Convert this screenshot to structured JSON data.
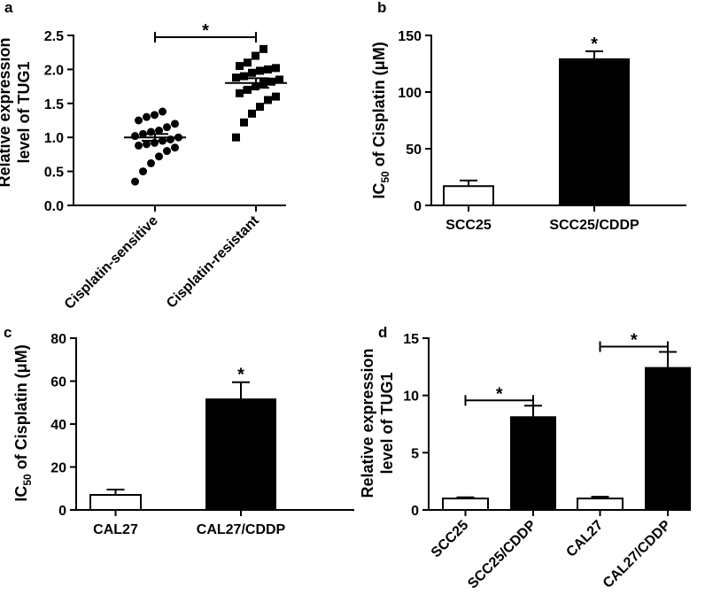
{
  "chart_data": [
    {
      "panel": "a",
      "type": "scatter",
      "ylabel": [
        "Relative expression",
        "level of TUG1"
      ],
      "ylim": [
        0,
        2.5
      ],
      "yticks": [
        "0.0",
        "0.5",
        "1.0",
        "1.5",
        "2.0",
        "2.5"
      ],
      "categories": [
        "Cisplatin-sensitive",
        "Cisplatin-resistant"
      ],
      "points": [
        [
          0.35,
          0.5,
          0.62,
          0.72,
          0.8,
          0.85,
          0.88,
          0.9,
          0.92,
          0.95,
          0.97,
          1.0,
          1.02,
          1.05,
          1.08,
          1.1,
          1.15,
          1.2,
          1.25,
          1.3,
          1.33,
          1.38
        ],
        [
          1.0,
          1.22,
          1.35,
          1.45,
          1.55,
          1.6,
          1.65,
          1.7,
          1.75,
          1.8,
          1.82,
          1.85,
          1.88,
          1.9,
          1.95,
          1.98,
          2.0,
          2.02,
          2.05,
          2.1,
          2.2,
          2.3
        ]
      ],
      "means": [
        1.0,
        1.8
      ],
      "sem": [
        0.05,
        0.07
      ],
      "significance": [
        {
          "pair": [
            0,
            1
          ],
          "label": "*"
        }
      ]
    },
    {
      "panel": "b",
      "type": "bar",
      "ylabel": "IC50 of Cisplatin (μM)",
      "ylim": [
        0,
        150
      ],
      "yticks": [
        "0",
        "50",
        "100",
        "150"
      ],
      "categories": [
        "SCC25",
        "SCC25/CDDP"
      ],
      "values": [
        17,
        129
      ],
      "errors": [
        5,
        7
      ],
      "fills": [
        "#ffffff",
        "#000000"
      ],
      "significance": [
        {
          "bar": 1,
          "label": "*"
        }
      ]
    },
    {
      "panel": "c",
      "type": "bar",
      "ylabel": "IC50 of Cisplatin (μM)",
      "ylim": [
        0,
        80
      ],
      "yticks": [
        "0",
        "20",
        "40",
        "60",
        "80"
      ],
      "categories": [
        "CAL27",
        "CAL27/CDDP"
      ],
      "values": [
        7,
        51.5
      ],
      "errors": [
        2.5,
        8
      ],
      "fills": [
        "#ffffff",
        "#000000"
      ],
      "significance": [
        {
          "bar": 1,
          "label": "*"
        }
      ]
    },
    {
      "panel": "d",
      "type": "bar",
      "ylabel": [
        "Relative expression",
        "level of TUG1"
      ],
      "ylim": [
        0,
        15
      ],
      "yticks": [
        "0",
        "5",
        "10",
        "15"
      ],
      "categories": [
        "SCC25",
        "SCC25/CDDP",
        "CAL27",
        "CAL27/CDDP"
      ],
      "values": [
        1.0,
        8.1,
        1.0,
        12.4
      ],
      "errors": [
        0.1,
        1.0,
        0.15,
        1.4
      ],
      "fills": [
        "#ffffff",
        "#000000",
        "#ffffff",
        "#000000"
      ],
      "significance": [
        {
          "pair": [
            0,
            1
          ],
          "label": "*"
        },
        {
          "pair": [
            2,
            3
          ],
          "label": "*"
        }
      ]
    }
  ]
}
